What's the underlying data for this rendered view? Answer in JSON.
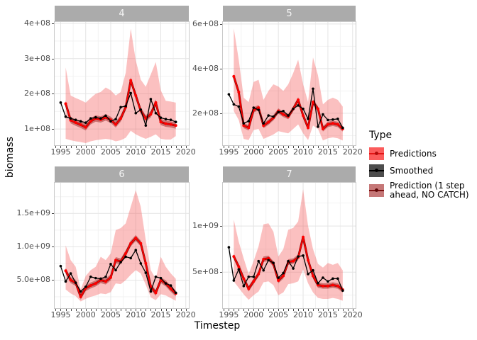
{
  "axis": {
    "ylabel": "biomass",
    "xlabel": "Timestep"
  },
  "legend": {
    "title": "Type",
    "items": [
      {
        "label": "Predictions",
        "key_color": "#fb5c5c",
        "line_color": "#ff0000"
      },
      {
        "label": "Smoothed",
        "key_color": "#4d4d4d",
        "line_color": "#000000"
      },
      {
        "label": "Prediction (1 step\n ahead, NO CATCH)",
        "key_color": "#c57777",
        "line_color": "#7a1010"
      }
    ]
  },
  "colors": {
    "ribbon_outer": "rgba(244,90,90,0.38)",
    "ribbon_inner": "rgba(150,20,20,0.45)",
    "predictions_line": "#ff0000",
    "onestep_line": "#7a0a0a",
    "smoothed_line": "#000000",
    "strip_bg": "#ababab",
    "grid_major": "#e4e4e4",
    "grid_minor": "#f2f2f2",
    "axis_text": "#4d4d4d"
  },
  "chart_data": {
    "type": "line",
    "xlabel": "Timestep",
    "ylabel": "biomass",
    "xlim": [
      1993.8,
      2020.6
    ],
    "xticks": [
      1995,
      2000,
      2005,
      2010,
      2015,
      2020
    ],
    "xminors": [
      1997.5,
      2002.5,
      2007.5,
      2012.5,
      2017.5
    ],
    "smoothed_years": [
      1995,
      1996,
      1997,
      1998,
      1999,
      2000,
      2001,
      2002,
      2003,
      2004,
      2005,
      2006,
      2007,
      2008,
      2009,
      2010,
      2011,
      2012,
      2013,
      2014,
      2015,
      2016,
      2017,
      2018
    ],
    "prediction_years": [
      1996,
      1997,
      1998,
      1999,
      2000,
      2001,
      2002,
      2003,
      2004,
      2005,
      2006,
      2007,
      2008,
      2009,
      2010,
      2011,
      2012,
      2013,
      2014,
      2015,
      2016,
      2017,
      2018
    ],
    "facets": [
      {
        "label": "4",
        "ylim": [
          54000000.0,
          404000000.0
        ],
        "yticks": [
          {
            "v": 100000000.0,
            "label": "1e+08"
          },
          {
            "v": 200000000.0,
            "label": "2e+08"
          },
          {
            "v": 300000000.0,
            "label": "3e+08"
          },
          {
            "v": 400000000.0,
            "label": "4e+08"
          }
        ],
        "yminors": [
          150000000.0,
          250000000.0,
          350000000.0
        ],
        "smoothed": [
          175000000.0,
          135000000.0,
          130000000.0,
          126000000.0,
          122000000.0,
          118000000.0,
          130000000.0,
          133000000.0,
          130000000.0,
          138000000.0,
          122000000.0,
          128000000.0,
          162000000.0,
          165000000.0,
          202000000.0,
          145000000.0,
          155000000.0,
          110000000.0,
          185000000.0,
          145000000.0,
          132000000.0,
          128000000.0,
          126000000.0,
          120000000.0
        ],
        "predictions": [
          172000000.0,
          125000000.0,
          118000000.0,
          112000000.0,
          105000000.0,
          122000000.0,
          130000000.0,
          127000000.0,
          133000000.0,
          126000000.0,
          113000000.0,
          130000000.0,
          162000000.0,
          238000000.0,
          195000000.0,
          152000000.0,
          130000000.0,
          142000000.0,
          175000000.0,
          120000000.0,
          115000000.0,
          113000000.0,
          110000000.0
        ],
        "upper": [
          275000000.0,
          195000000.0,
          188000000.0,
          182000000.0,
          175000000.0,
          188000000.0,
          200000000.0,
          205000000.0,
          218000000.0,
          210000000.0,
          195000000.0,
          205000000.0,
          260000000.0,
          385000000.0,
          295000000.0,
          240000000.0,
          220000000.0,
          255000000.0,
          290000000.0,
          210000000.0,
          180000000.0,
          178000000.0,
          175000000.0
        ],
        "lower": [
          72000000.0,
          68000000.0,
          65000000.0,
          63000000.0,
          60000000.0,
          65000000.0,
          68000000.0,
          70000000.0,
          72000000.0,
          70000000.0,
          65000000.0,
          68000000.0,
          75000000.0,
          95000000.0,
          85000000.0,
          78000000.0,
          72000000.0,
          78000000.0,
          85000000.0,
          72000000.0,
          70000000.0,
          70000000.0,
          80000000.0
        ],
        "inner_delta": 9000000.0
      },
      {
        "label": "5",
        "ylim": [
          57000000.0,
          609000000.0
        ],
        "yticks": [
          {
            "v": 200000000.0,
            "label": "2e+08"
          },
          {
            "v": 400000000.0,
            "label": "4e+08"
          },
          {
            "v": 600000000.0,
            "label": "6e+08"
          }
        ],
        "yminors": [
          100000000.0,
          300000000.0,
          500000000.0
        ],
        "smoothed": [
          285000000.0,
          240000000.0,
          230000000.0,
          155000000.0,
          165000000.0,
          225000000.0,
          215000000.0,
          155000000.0,
          190000000.0,
          185000000.0,
          205000000.0,
          210000000.0,
          190000000.0,
          220000000.0,
          235000000.0,
          220000000.0,
          175000000.0,
          310000000.0,
          140000000.0,
          195000000.0,
          170000000.0,
          172000000.0,
          175000000.0,
          135000000.0
        ],
        "predictions": [
          365000000.0,
          295000000.0,
          145000000.0,
          135000000.0,
          215000000.0,
          225000000.0,
          145000000.0,
          160000000.0,
          180000000.0,
          210000000.0,
          195000000.0,
          185000000.0,
          220000000.0,
          260000000.0,
          190000000.0,
          135000000.0,
          250000000.0,
          220000000.0,
          130000000.0,
          150000000.0,
          155000000.0,
          150000000.0,
          130000000.0
        ],
        "upper": [
          580000000.0,
          440000000.0,
          270000000.0,
          250000000.0,
          340000000.0,
          350000000.0,
          260000000.0,
          300000000.0,
          330000000.0,
          320000000.0,
          300000000.0,
          330000000.0,
          380000000.0,
          440000000.0,
          330000000.0,
          250000000.0,
          450000000.0,
          370000000.0,
          240000000.0,
          260000000.0,
          270000000.0,
          260000000.0,
          230000000.0
        ],
        "lower": [
          210000000.0,
          170000000.0,
          85000000.0,
          80000000.0,
          125000000.0,
          130000000.0,
          85000000.0,
          95000000.0,
          105000000.0,
          120000000.0,
          115000000.0,
          110000000.0,
          130000000.0,
          150000000.0,
          110000000.0,
          80000000.0,
          145000000.0,
          130000000.0,
          78000000.0,
          88000000.0,
          92000000.0,
          88000000.0,
          78000000.0
        ],
        "inner_delta": 12000000.0
      },
      {
        "label": "6",
        "ylim": [
          80000000.0,
          1960000000.0
        ],
        "yticks": [
          {
            "v": 500000000.0,
            "label": "5.0e+08"
          },
          {
            "v": 1000000000.0,
            "label": "1.0e+09"
          },
          {
            "v": 1500000000.0,
            "label": "1.5e+09"
          }
        ],
        "yminors": [
          250000000.0,
          750000000.0,
          1250000000.0,
          1750000000.0
        ],
        "smoothed": [
          710000000.0,
          480000000.0,
          600000000.0,
          460000000.0,
          330000000.0,
          400000000.0,
          550000000.0,
          530000000.0,
          520000000.0,
          550000000.0,
          740000000.0,
          650000000.0,
          770000000.0,
          850000000.0,
          830000000.0,
          950000000.0,
          750000000.0,
          610000000.0,
          330000000.0,
          550000000.0,
          530000000.0,
          450000000.0,
          420000000.0,
          310000000.0
        ],
        "predictions": [
          640000000.0,
          500000000.0,
          460000000.0,
          250000000.0,
          380000000.0,
          420000000.0,
          450000000.0,
          500000000.0,
          480000000.0,
          540000000.0,
          800000000.0,
          780000000.0,
          900000000.0,
          1050000000.0,
          1130000000.0,
          1050000000.0,
          750000000.0,
          400000000.0,
          310000000.0,
          500000000.0,
          450000000.0,
          370000000.0,
          300000000.0
        ],
        "upper": [
          1020000000.0,
          800000000.0,
          700000000.0,
          360000000.0,
          560000000.0,
          650000000.0,
          700000000.0,
          850000000.0,
          800000000.0,
          900000000.0,
          1250000000.0,
          1280000000.0,
          1350000000.0,
          1600000000.0,
          1850000000.0,
          1600000000.0,
          1100000000.0,
          650000000.0,
          520000000.0,
          850000000.0,
          700000000.0,
          600000000.0,
          520000000.0
        ],
        "lower": [
          360000000.0,
          300000000.0,
          260000000.0,
          180000000.0,
          220000000.0,
          250000000.0,
          270000000.0,
          300000000.0,
          290000000.0,
          320000000.0,
          450000000.0,
          440000000.0,
          500000000.0,
          580000000.0,
          650000000.0,
          600000000.0,
          430000000.0,
          240000000.0,
          200000000.0,
          290000000.0,
          270000000.0,
          230000000.0,
          190000000.0
        ],
        "inner_delta": 45000000.0
      },
      {
        "label": "7",
        "ylim": [
          110000000.0,
          1470000000.0
        ],
        "yticks": [
          {
            "v": 500000000.0,
            "label": "5e+08"
          },
          {
            "v": 1000000000.0,
            "label": "1e+09"
          }
        ],
        "yminors": [
          250000000.0,
          750000000.0,
          1250000000.0
        ],
        "smoothed": [
          770000000.0,
          410000000.0,
          530000000.0,
          350000000.0,
          450000000.0,
          450000000.0,
          620000000.0,
          520000000.0,
          630000000.0,
          600000000.0,
          440000000.0,
          490000000.0,
          620000000.0,
          540000000.0,
          670000000.0,
          680000000.0,
          480000000.0,
          520000000.0,
          380000000.0,
          440000000.0,
          400000000.0,
          430000000.0,
          430000000.0,
          300000000.0
        ],
        "predictions": [
          670000000.0,
          560000000.0,
          430000000.0,
          320000000.0,
          400000000.0,
          480000000.0,
          640000000.0,
          650000000.0,
          590000000.0,
          410000000.0,
          460000000.0,
          610000000.0,
          620000000.0,
          660000000.0,
          880000000.0,
          630000000.0,
          460000000.0,
          360000000.0,
          350000000.0,
          350000000.0,
          360000000.0,
          350000000.0,
          310000000.0
        ],
        "upper": [
          1070000000.0,
          830000000.0,
          650000000.0,
          480000000.0,
          620000000.0,
          780000000.0,
          1020000000.0,
          1030000000.0,
          940000000.0,
          670000000.0,
          750000000.0,
          960000000.0,
          980000000.0,
          1050000000.0,
          1400000000.0,
          1000000000.0,
          750000000.0,
          590000000.0,
          550000000.0,
          600000000.0,
          580000000.0,
          600000000.0,
          520000000.0
        ],
        "lower": [
          400000000.0,
          330000000.0,
          260000000.0,
          200000000.0,
          250000000.0,
          290000000.0,
          390000000.0,
          400000000.0,
          360000000.0,
          250000000.0,
          280000000.0,
          370000000.0,
          380000000.0,
          400000000.0,
          530000000.0,
          380000000.0,
          280000000.0,
          220000000.0,
          210000000.0,
          210000000.0,
          220000000.0,
          210000000.0,
          190000000.0
        ],
        "inner_delta": 30000000.0
      }
    ],
    "legend_position": "right",
    "grid": true
  }
}
